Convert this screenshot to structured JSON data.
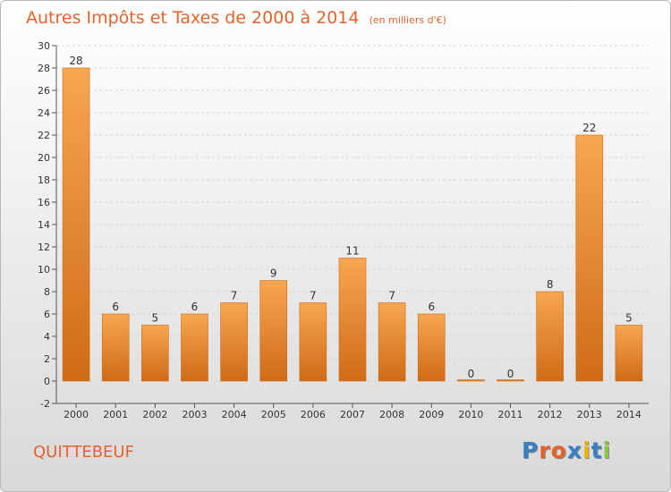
{
  "title": "Autres Impôts et Taxes de 2000 à 2014",
  "subtitle": "(en milliers d'€)",
  "town": "QUITTEBEUF",
  "logo": {
    "text": "Proxiti",
    "colors": [
      "#3a7ec2",
      "#e4632a",
      "#e4632a",
      "#3a7ec2",
      "#f2b400",
      "#3a7ec2",
      "#8cc63f"
    ]
  },
  "colors": {
    "accent": "#e4632a",
    "bar_light": "#f7a650",
    "bar_dark": "#cf6b17"
  },
  "chart_data": {
    "type": "bar",
    "categories": [
      "2000",
      "2001",
      "2002",
      "2003",
      "2004",
      "2005",
      "2006",
      "2007",
      "2008",
      "2009",
      "2010",
      "2011",
      "2012",
      "2013",
      "2014"
    ],
    "values": [
      28,
      6,
      5,
      6,
      7,
      9,
      7,
      11,
      7,
      6,
      0,
      0,
      8,
      22,
      5
    ],
    "ylim": [
      -2,
      30
    ],
    "yticks": [
      -2,
      0,
      2,
      4,
      6,
      8,
      10,
      12,
      14,
      16,
      18,
      20,
      22,
      24,
      26,
      28,
      30
    ],
    "grid": true,
    "data_labels": true
  }
}
